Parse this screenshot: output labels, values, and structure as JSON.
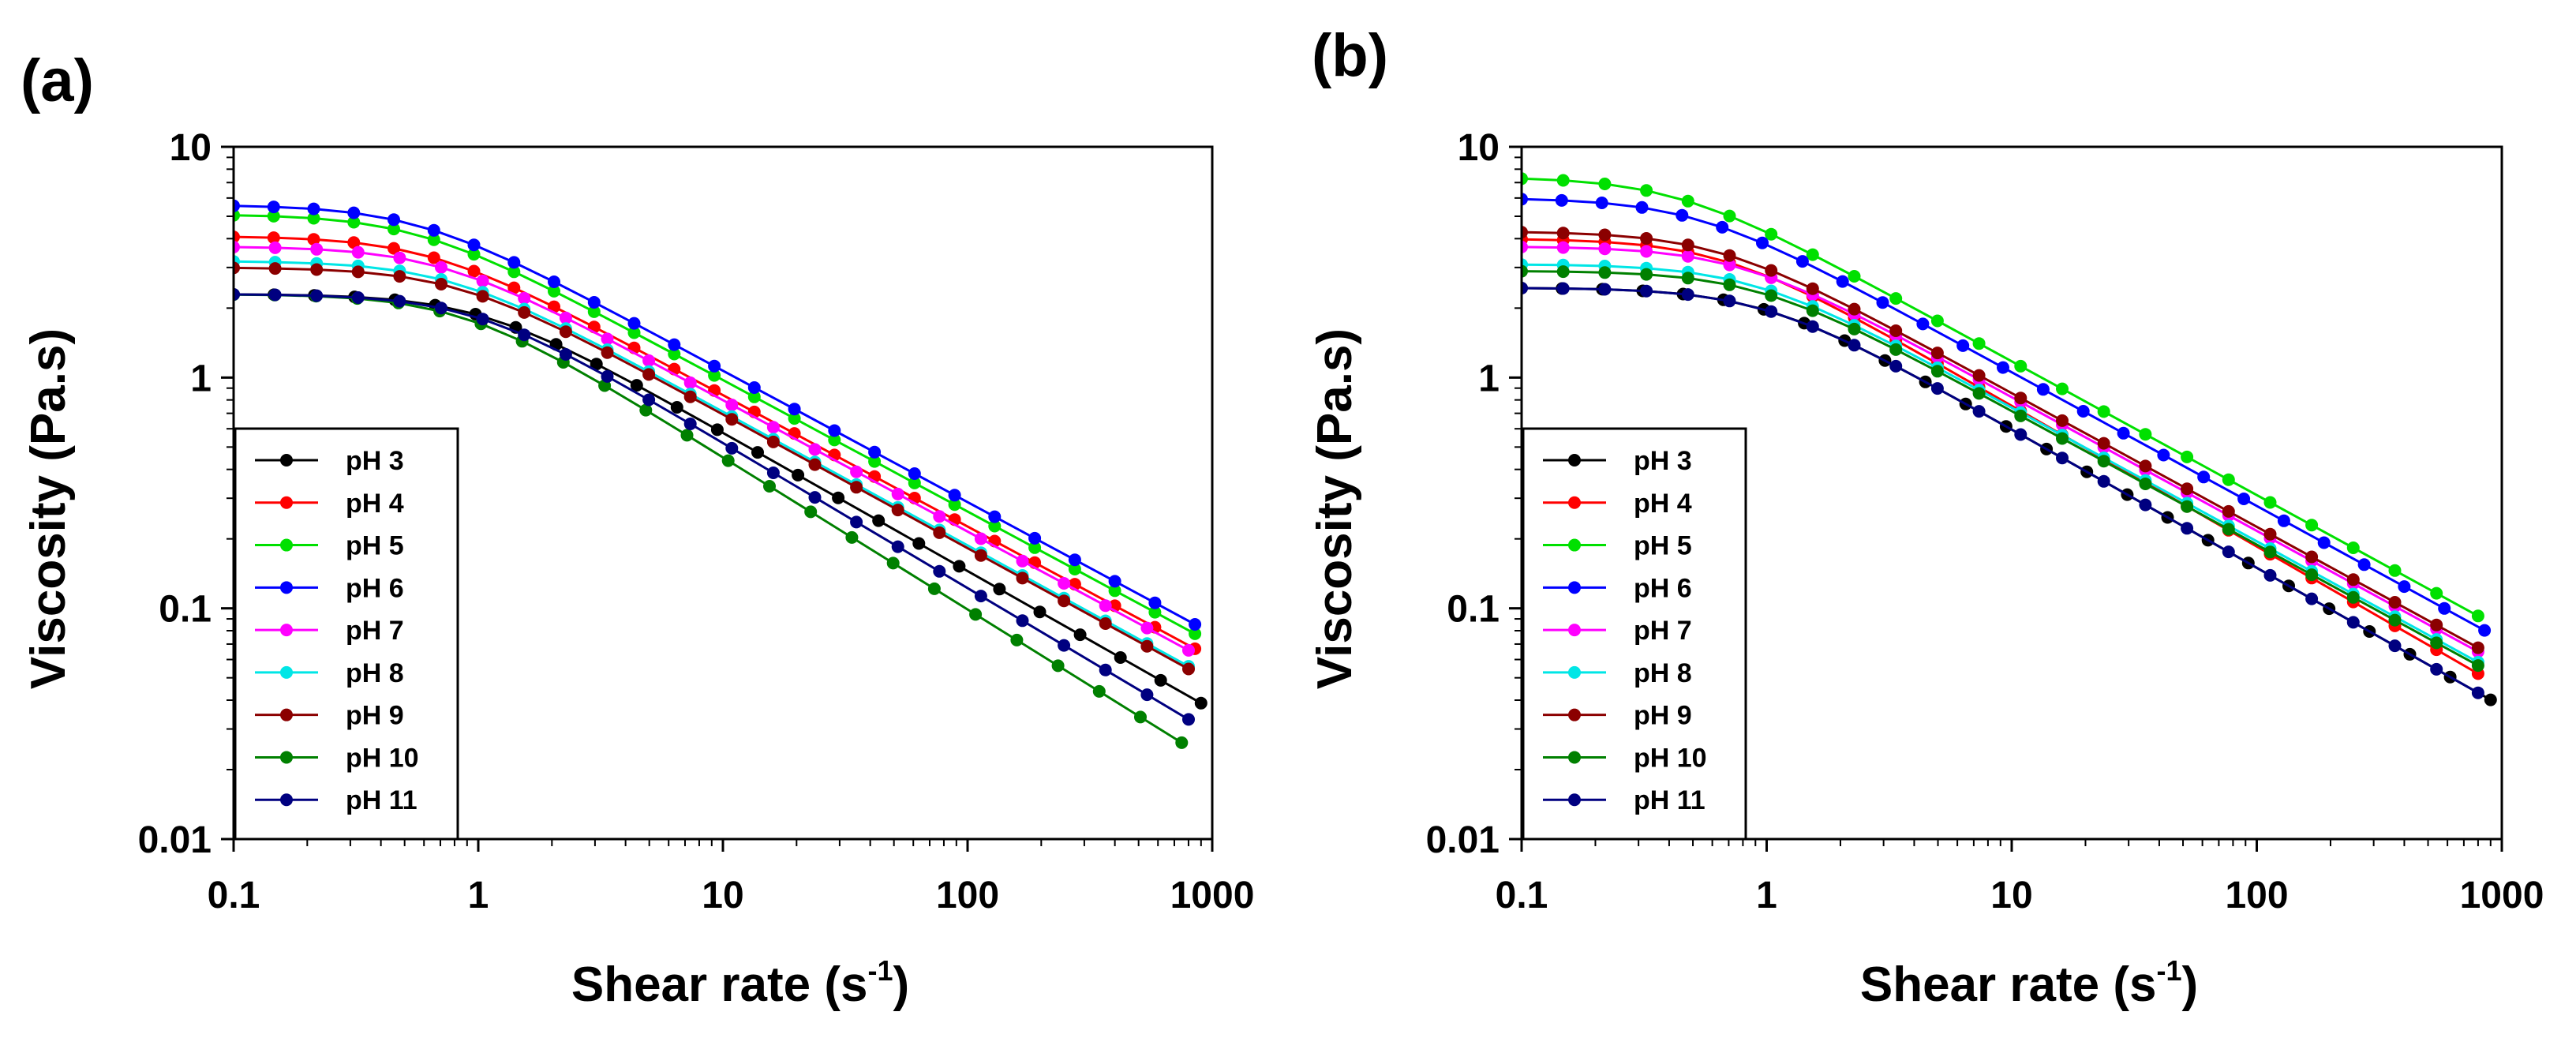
{
  "chart_data": [
    {
      "type": "line",
      "panel_label": "(a)",
      "xscale": "log",
      "yscale": "log",
      "xlim": [
        0.1,
        1000
      ],
      "ylim": [
        0.01,
        10
      ],
      "xlabel": "Shear rate (s",
      "xlabel_sup": "-1",
      "xlabel_close": ")",
      "ylabel": "Viscosity (Pa.s)",
      "xticks": [
        "0.1",
        "1",
        "10",
        "100",
        "1000"
      ],
      "yticks": [
        "0.01",
        "0.1",
        "1",
        "10"
      ],
      "legend_position": "bottom-left",
      "series": [
        {
          "name": "pH 3",
          "color": "#000000",
          "eta0": 2.3,
          "gc": 1.0,
          "n": 0.4,
          "xmax": 900
        },
        {
          "name": "pH 4",
          "color": "#ff0000",
          "eta0": 4.1,
          "gc": 0.62,
          "n": 0.43,
          "xmax": 850
        },
        {
          "name": "pH 5",
          "color": "#00e000",
          "eta0": 5.1,
          "gc": 0.55,
          "n": 0.43,
          "xmax": 850
        },
        {
          "name": "pH 6",
          "color": "#0000ff",
          "eta0": 5.6,
          "gc": 0.55,
          "n": 0.43,
          "xmax": 850
        },
        {
          "name": "pH 7",
          "color": "#ff00ff",
          "eta0": 3.7,
          "gc": 0.68,
          "n": 0.43,
          "xmax": 800
        },
        {
          "name": "pH 8",
          "color": "#00e6e6",
          "eta0": 3.2,
          "gc": 0.75,
          "n": 0.42,
          "xmax": 800
        },
        {
          "name": "pH 9",
          "color": "#8b0000",
          "eta0": 3.0,
          "gc": 0.8,
          "n": 0.42,
          "xmax": 800
        },
        {
          "name": "pH 10",
          "color": "#008000",
          "eta0": 2.3,
          "gc": 0.85,
          "n": 0.34,
          "xmax": 750
        },
        {
          "name": "pH 11",
          "color": "#000080",
          "eta0": 2.3,
          "gc": 0.95,
          "n": 0.37,
          "xmax": 800
        }
      ]
    },
    {
      "type": "line",
      "panel_label": "(b)",
      "xscale": "log",
      "yscale": "log",
      "xlim": [
        0.1,
        1000
      ],
      "ylim": [
        0.01,
        10
      ],
      "xlabel": "Shear rate (s",
      "xlabel_sup": "-1",
      "xlabel_close": ")",
      "ylabel": "Viscosity (Pa.s)",
      "xticks": [
        "0.1",
        "1",
        "10",
        "100",
        "1000"
      ],
      "yticks": [
        "0.01",
        "0.1",
        "1",
        "10"
      ],
      "legend_position": "bottom-left",
      "series": [
        {
          "name": "pH 3",
          "color": "#000000",
          "eta0": 2.45,
          "gc": 0.95,
          "n": 0.4,
          "xmax": 900
        },
        {
          "name": "pH 4",
          "color": "#ff0000",
          "eta0": 4.0,
          "gc": 0.65,
          "n": 0.39,
          "xmax": 800
        },
        {
          "name": "pH 5",
          "color": "#00e000",
          "eta0": 7.4,
          "gc": 0.42,
          "n": 0.42,
          "xmax": 800
        },
        {
          "name": "pH 6",
          "color": "#0000ff",
          "eta0": 6.0,
          "gc": 0.5,
          "n": 0.42,
          "xmax": 850
        },
        {
          "name": "pH 7",
          "color": "#ff00ff",
          "eta0": 3.7,
          "gc": 0.75,
          "n": 0.42,
          "xmax": 800
        },
        {
          "name": "pH 8",
          "color": "#00e6e6",
          "eta0": 3.1,
          "gc": 0.85,
          "n": 0.42,
          "xmax": 800
        },
        {
          "name": "pH 9",
          "color": "#8b0000",
          "eta0": 4.3,
          "gc": 0.62,
          "n": 0.42,
          "xmax": 800
        },
        {
          "name": "pH 10",
          "color": "#008000",
          "eta0": 2.9,
          "gc": 0.9,
          "n": 0.42,
          "xmax": 800
        },
        {
          "name": "pH 11",
          "color": "#000080",
          "eta0": 2.45,
          "gc": 0.95,
          "n": 0.4,
          "xmax": 800
        }
      ]
    }
  ]
}
